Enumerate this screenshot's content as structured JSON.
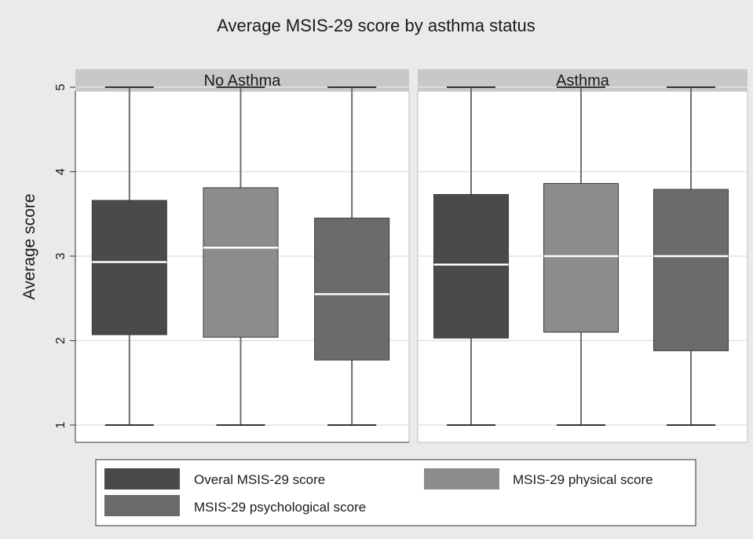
{
  "chart_data": {
    "type": "box",
    "title": "Average MSIS-29 score by asthma status",
    "ylabel": "Average score",
    "ylim": [
      1,
      5
    ],
    "yticks": [
      1,
      2,
      3,
      4,
      5
    ],
    "grid": true,
    "legend_position": "bottom",
    "panels": [
      {
        "label": "No Asthma",
        "boxes": [
          {
            "series": "Overal MSIS-29 score",
            "min": 1,
            "q1": 2.07,
            "median": 2.93,
            "q3": 3.66,
            "max": 5
          },
          {
            "series": "MSIS-29 physical score",
            "min": 1,
            "q1": 2.04,
            "median": 3.1,
            "q3": 3.81,
            "max": 5
          },
          {
            "series": "MSIS-29 psychological score",
            "min": 1,
            "q1": 1.77,
            "median": 2.55,
            "q3": 3.45,
            "max": 5
          }
        ]
      },
      {
        "label": "Asthma",
        "boxes": [
          {
            "series": "Overal MSIS-29 score",
            "min": 1,
            "q1": 2.03,
            "median": 2.9,
            "q3": 3.73,
            "max": 5
          },
          {
            "series": "MSIS-29 physical score",
            "min": 1,
            "q1": 2.1,
            "median": 3.0,
            "q3": 3.86,
            "max": 5
          },
          {
            "series": "MSIS-29 psychological score",
            "min": 1,
            "q1": 1.88,
            "median": 3.0,
            "q3": 3.79,
            "max": 5
          }
        ]
      }
    ],
    "series": [
      {
        "name": "Overal MSIS-29 score",
        "color": "#4a4a4a"
      },
      {
        "name": "MSIS-29 physical score",
        "color": "#8c8c8c"
      },
      {
        "name": "MSIS-29 psychological score",
        "color": "#6b6b6b"
      }
    ],
    "colors": {
      "outer_background": "#eaeaea",
      "plot_background": "#ffffff",
      "strip_background": "#c8c8c8",
      "whisker": "#6e6e6e",
      "median": "#ffffff",
      "grid": "#e2e2e2"
    }
  }
}
